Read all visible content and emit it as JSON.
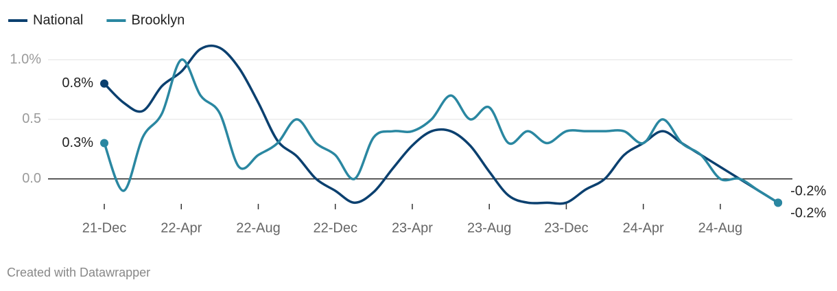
{
  "chart_data": {
    "type": "line",
    "categories": [
      "21-Dec",
      null,
      null,
      null,
      "22-Apr",
      null,
      null,
      null,
      "22-Aug",
      null,
      null,
      null,
      "22-Dec",
      null,
      null,
      null,
      "23-Apr",
      null,
      null,
      null,
      "23-Aug",
      null,
      null,
      null,
      "23-Dec",
      null,
      null,
      null,
      "24-Apr",
      null,
      null,
      null,
      "24-Aug",
      null,
      null,
      null
    ],
    "series": [
      {
        "name": "National",
        "color": "#0b406f",
        "values": [
          0.8,
          0.64,
          0.57,
          0.78,
          0.9,
          1.09,
          1.1,
          0.93,
          0.64,
          0.32,
          0.19,
          0.0,
          -0.1,
          -0.2,
          -0.11,
          0.09,
          0.28,
          0.4,
          0.4,
          0.28,
          0.06,
          -0.14,
          -0.2,
          -0.2,
          -0.2,
          -0.09,
          0.0,
          0.2,
          0.3,
          0.4,
          0.3,
          0.2,
          0.1,
          0.0,
          -0.1,
          -0.2
        ],
        "value_labels": [
          "0.8%",
          null,
          null,
          null,
          null,
          null,
          null,
          null,
          null,
          null,
          null,
          null,
          null,
          null,
          null,
          null,
          null,
          null,
          null,
          null,
          null,
          null,
          null,
          null,
          null,
          null,
          null,
          null,
          null,
          null,
          null,
          null,
          null,
          null,
          null,
          "-0.2%"
        ]
      },
      {
        "name": "Brooklyn",
        "color": "#2a87a1",
        "values": [
          0.3,
          -0.1,
          0.35,
          0.55,
          1.0,
          0.7,
          0.55,
          0.1,
          0.2,
          0.3,
          0.5,
          0.3,
          0.2,
          0.0,
          0.35,
          0.4,
          0.4,
          0.5,
          0.7,
          0.5,
          0.6,
          0.3,
          0.4,
          0.3,
          0.4,
          0.4,
          0.4,
          0.4,
          0.3,
          0.5,
          0.3,
          0.2,
          0.0,
          0.0,
          -0.1,
          -0.2
        ],
        "value_labels": [
          "0.3%",
          null,
          null,
          null,
          null,
          null,
          null,
          null,
          null,
          null,
          null,
          null,
          null,
          null,
          null,
          null,
          null,
          null,
          null,
          null,
          null,
          null,
          null,
          null,
          null,
          null,
          null,
          null,
          null,
          null,
          null,
          null,
          null,
          null,
          null,
          "-0.2%"
        ]
      }
    ],
    "ylim": [
      -0.25,
      1.15
    ],
    "yticks": [
      {
        "value": 1,
        "label": "1.0%"
      },
      {
        "value": 0.5,
        "label": "0.5"
      },
      {
        "value": 0,
        "label": "0.0"
      }
    ],
    "grid": true,
    "credit": "Created with Datawrapper"
  }
}
